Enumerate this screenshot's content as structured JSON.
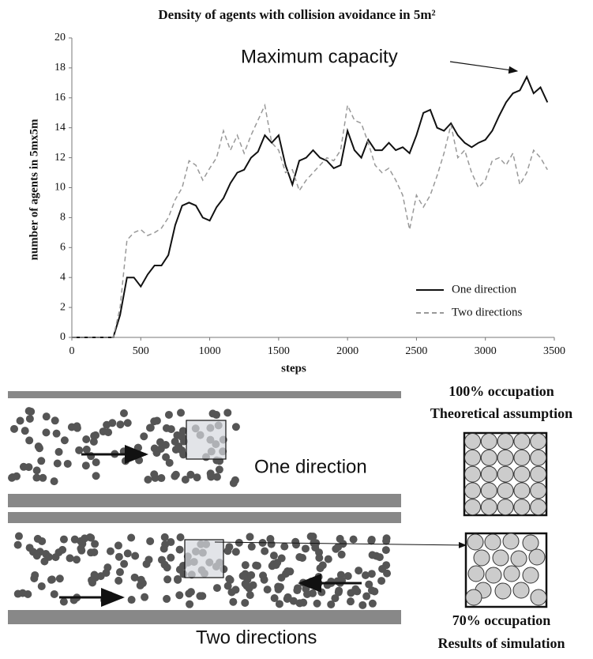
{
  "chart_data": {
    "type": "line",
    "title": "Density of agents with collision avoidance in 5m²",
    "xlabel": "steps",
    "ylabel": "number of agents in 5mx5m",
    "annotation": "Maximum capacity",
    "x": [
      0,
      50,
      100,
      150,
      200,
      250,
      300,
      350,
      400,
      450,
      500,
      550,
      600,
      650,
      700,
      750,
      800,
      850,
      900,
      950,
      1000,
      1050,
      1100,
      1150,
      1200,
      1250,
      1300,
      1350,
      1400,
      1450,
      1500,
      1550,
      1600,
      1650,
      1700,
      1750,
      1800,
      1850,
      1900,
      1950,
      2000,
      2050,
      2100,
      2150,
      2200,
      2250,
      2300,
      2350,
      2400,
      2450,
      2500,
      2550,
      2600,
      2650,
      2700,
      2750,
      2800,
      2850,
      2900,
      2950,
      3000,
      3050,
      3100,
      3150,
      3200,
      3250,
      3300,
      3350,
      3400,
      3450
    ],
    "series": [
      {
        "name": "One direction",
        "color": "#111111",
        "dash": false,
        "values": [
          0,
          0,
          0,
          0,
          0,
          0,
          0,
          1.5,
          4,
          4,
          3.4,
          4.2,
          4.8,
          4.8,
          5.5,
          7.5,
          8.8,
          9,
          8.8,
          8,
          7.8,
          8.7,
          9.3,
          10.3,
          11,
          11.2,
          12,
          12.4,
          13.5,
          13,
          13.5,
          11.5,
          10.2,
          11.8,
          12,
          12.5,
          12,
          11.8,
          11.3,
          11.5,
          13.8,
          12.5,
          12,
          13.2,
          12.5,
          12.5,
          13,
          12.5,
          12.7,
          12.3,
          13.5,
          15,
          15.2,
          14,
          13.8,
          14.3,
          13.5,
          13,
          12.7,
          13,
          13.2,
          13.8,
          14.8,
          15.7,
          16.3,
          16.5,
          17.4,
          16.3,
          16.7,
          15.7
        ]
      },
      {
        "name": "Two directions",
        "color": "#999999",
        "dash": true,
        "values": [
          0,
          0,
          0,
          0,
          0,
          0,
          0,
          2,
          6.5,
          7,
          7.2,
          6.8,
          7,
          7.3,
          8,
          9.2,
          10,
          11.8,
          11.5,
          10.5,
          11.3,
          12,
          13.8,
          12.5,
          13.5,
          12.3,
          13.5,
          14.5,
          15.5,
          13,
          12.5,
          11,
          11.2,
          9.8,
          10.5,
          11,
          11.5,
          12,
          11.8,
          12.5,
          15.5,
          14.5,
          14.3,
          13,
          11.5,
          11,
          11.3,
          10.5,
          9.5,
          7.2,
          9.5,
          8.7,
          9.5,
          10.8,
          12.3,
          14.2,
          12,
          12.5,
          11,
          10,
          10.5,
          11.8,
          12,
          11.5,
          12.3,
          10.2,
          11,
          12.5,
          12,
          11.2
        ]
      }
    ],
    "xlim": [
      0,
      3500
    ],
    "xticks": [
      0,
      500,
      1000,
      1500,
      2000,
      2500,
      3000,
      3500
    ],
    "ylim": [
      0,
      20
    ],
    "yticks": [
      0,
      2,
      4,
      6,
      8,
      10,
      12,
      14,
      16,
      18,
      20
    ],
    "grid": false,
    "legend": "lower right"
  },
  "illustration": {
    "corridor_1": "One direction",
    "corridor_2": "Two directions",
    "theory_title": "100% occupation",
    "theory_subtitle": "Theoretical assumption",
    "sim_title": "70% occupation",
    "sim_subtitle": "Results of simulation"
  }
}
